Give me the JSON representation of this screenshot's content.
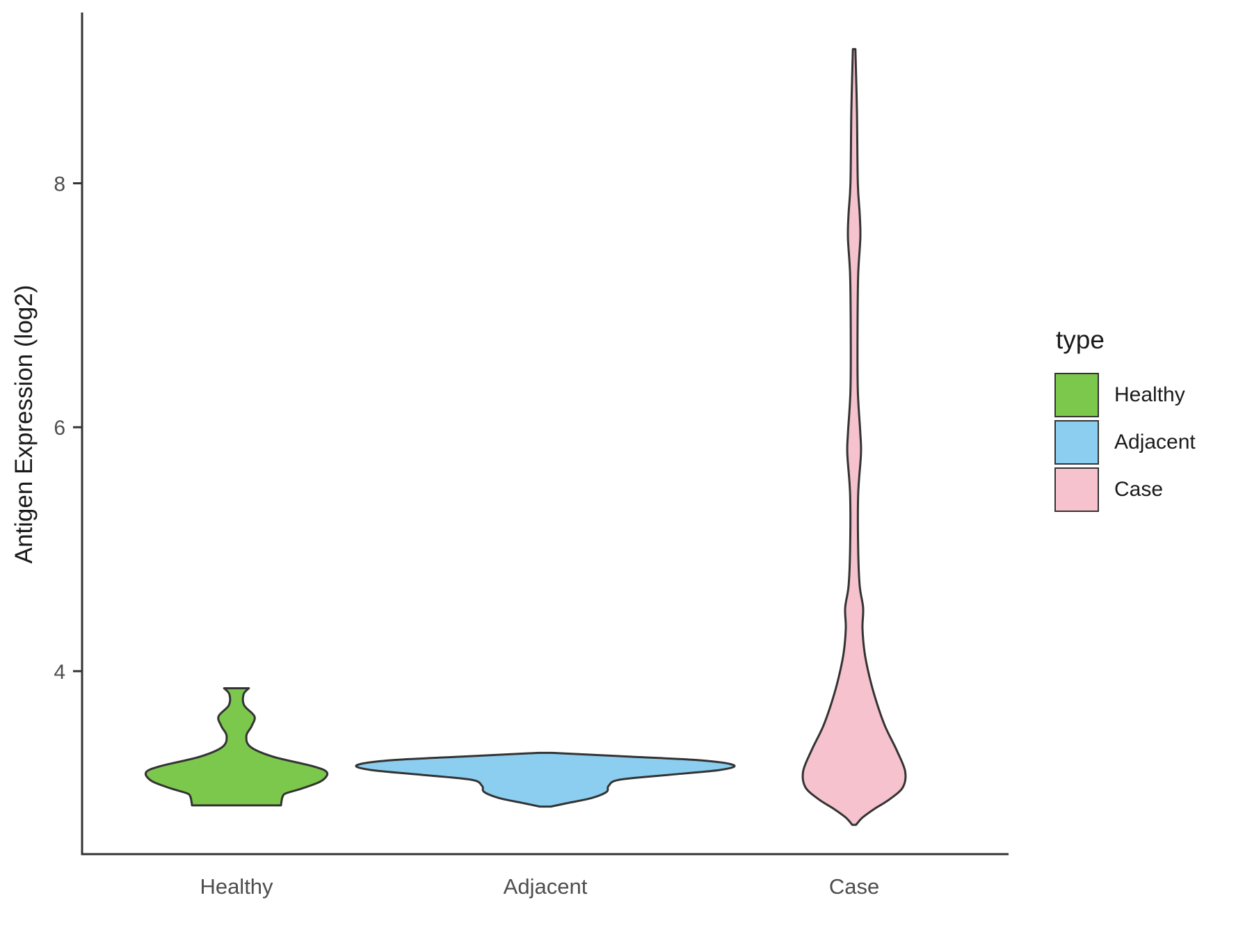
{
  "chart_data": {
    "type": "violin",
    "ylabel": "Antigen Expression (log2)",
    "xlabel": "",
    "categories": [
      "Healthy",
      "Adjacent",
      "Case"
    ],
    "yticks": [
      4,
      6,
      8
    ],
    "ylim": [
      2.5,
      9.4
    ],
    "grid": false,
    "outline_color": "#333333",
    "legend": {
      "title": "type",
      "position": "right",
      "entries": [
        {
          "label": "Healthy",
          "color": "#7cc84d"
        },
        {
          "label": "Adjacent",
          "color": "#8ccef0"
        },
        {
          "label": "Case",
          "color": "#f5c2ce"
        }
      ]
    },
    "series": [
      {
        "name": "Healthy",
        "fill": "#7cc84d",
        "y_range": [
          2.9,
          3.86
        ],
        "peak_y": 3.17,
        "profile": [
          [
            3.86,
            0.04
          ],
          [
            3.81,
            0.023
          ],
          [
            3.72,
            0.025
          ],
          [
            3.63,
            0.058
          ],
          [
            3.55,
            0.049
          ],
          [
            3.47,
            0.032
          ],
          [
            3.38,
            0.045
          ],
          [
            3.3,
            0.117
          ],
          [
            3.22,
            0.248
          ],
          [
            3.17,
            0.293
          ],
          [
            3.1,
            0.275
          ],
          [
            3.04,
            0.214
          ],
          [
            3.0,
            0.162
          ],
          [
            2.97,
            0.149
          ],
          [
            2.9,
            0.144
          ]
        ]
      },
      {
        "name": "Adjacent",
        "fill": "#8ccef0",
        "y_range": [
          2.89,
          3.33
        ],
        "peak_y": 3.23,
        "profile": [
          [
            3.33,
            0.022
          ],
          [
            3.3,
            0.27
          ],
          [
            3.27,
            0.5
          ],
          [
            3.23,
            0.61
          ],
          [
            3.19,
            0.565
          ],
          [
            3.15,
            0.4
          ],
          [
            3.11,
            0.24
          ],
          [
            3.06,
            0.205
          ],
          [
            3.01,
            0.198
          ],
          [
            2.96,
            0.15
          ],
          [
            2.92,
            0.075
          ],
          [
            2.89,
            0.018
          ]
        ]
      },
      {
        "name": "Case",
        "fill": "#f5c2ce",
        "y_range": [
          2.74,
          9.1
        ],
        "peak_y": 3.18,
        "profile": [
          [
            9.1,
            0.004
          ],
          [
            8.6,
            0.009
          ],
          [
            8.0,
            0.012
          ],
          [
            7.75,
            0.018
          ],
          [
            7.55,
            0.02
          ],
          [
            7.25,
            0.013
          ],
          [
            6.8,
            0.011
          ],
          [
            6.3,
            0.012
          ],
          [
            5.95,
            0.02
          ],
          [
            5.78,
            0.022
          ],
          [
            5.45,
            0.013
          ],
          [
            5.0,
            0.013
          ],
          [
            4.7,
            0.018
          ],
          [
            4.52,
            0.029
          ],
          [
            4.35,
            0.027
          ],
          [
            4.15,
            0.034
          ],
          [
            3.95,
            0.05
          ],
          [
            3.75,
            0.072
          ],
          [
            3.55,
            0.1
          ],
          [
            3.35,
            0.138
          ],
          [
            3.18,
            0.165
          ],
          [
            3.05,
            0.158
          ],
          [
            2.95,
            0.115
          ],
          [
            2.87,
            0.065
          ],
          [
            2.8,
            0.027
          ],
          [
            2.74,
            0.006
          ]
        ]
      }
    ]
  }
}
